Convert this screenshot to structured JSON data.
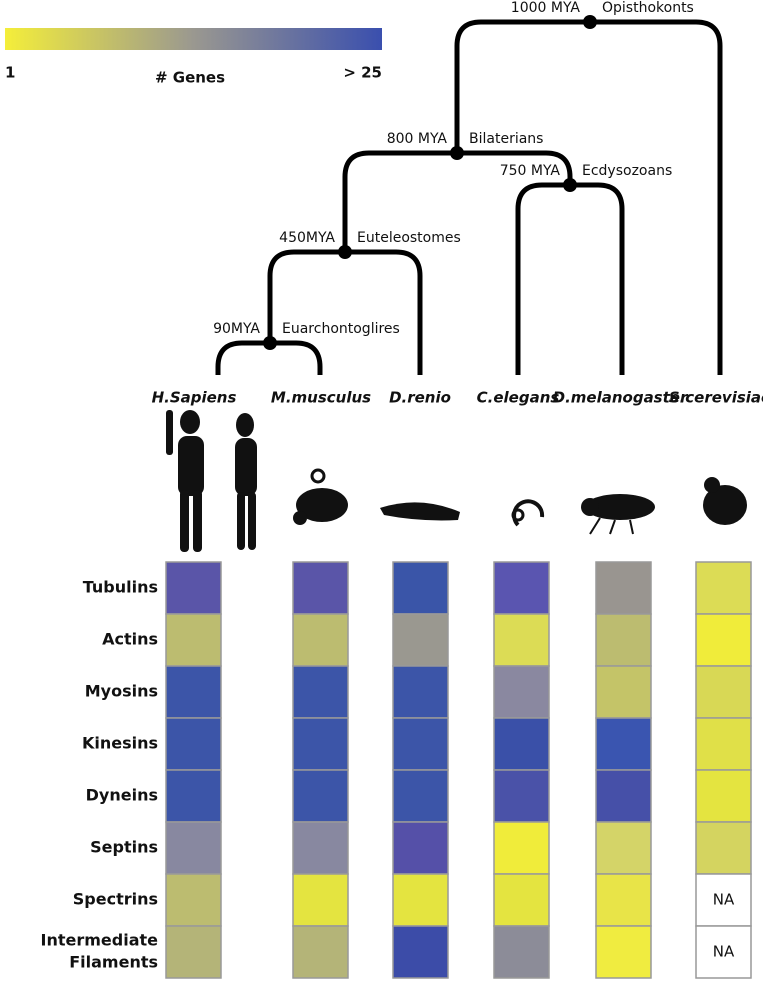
{
  "legend": {
    "title": "# Genes",
    "min_label": "1",
    "max_label": "> 25",
    "colors": [
      "#f4ee3a",
      "#9a9890",
      "#3a4fae"
    ]
  },
  "tree": {
    "nodes": [
      {
        "age": "1000 MYA",
        "clade": "Opisthokonts"
      },
      {
        "age": "800 MYA",
        "clade": "Bilaterians"
      },
      {
        "age": "750 MYA",
        "clade": "Ecdysozoans"
      },
      {
        "age": "450MYA",
        "clade": "Euteleostomes"
      },
      {
        "age": "90MYA",
        "clade": "Euarchontoglires"
      }
    ]
  },
  "species": [
    "H.Sapiens",
    "M.musculus",
    "D.renio",
    "C.elegans",
    "D.melanogaster",
    "S.cerevisiae"
  ],
  "heatmap": {
    "rows": [
      {
        "label": "Tubulins",
        "cells": [
          "#5a55a8",
          "#5a55a8",
          "#3a55a8",
          "#5a55b0",
          "#999590",
          "#dcdc55"
        ]
      },
      {
        "label": "Actins",
        "cells": [
          "#bcbc70",
          "#bcbc70",
          "#9a9890",
          "#dcdc55",
          "#bcbc70",
          "#f0ec3a"
        ]
      },
      {
        "label": "Myosins",
        "cells": [
          "#3c55a8",
          "#3c55a8",
          "#3c55a8",
          "#8a88a0",
          "#c4c468",
          "#d8d855"
        ]
      },
      {
        "label": "Kinesins",
        "cells": [
          "#3c55a8",
          "#3c55a8",
          "#3c55a8",
          "#3a50a8",
          "#3a55b0",
          "#e0e048"
        ]
      },
      {
        "label": "Dyneins",
        "cells": [
          "#3c55a8",
          "#3c55a8",
          "#3c55a8",
          "#4a52a8",
          "#4650a8",
          "#e4e440"
        ]
      },
      {
        "label": "Septins",
        "cells": [
          "#8888a0",
          "#8888a0",
          "#5550a8",
          "#f0ec3a",
          "#d4d468",
          "#d4d460"
        ]
      },
      {
        "label": "Spectrins",
        "cells": [
          "#bcbc70",
          "#e4e440",
          "#e4e440",
          "#e4e440",
          "#e8e448",
          {
            "label": "NA"
          }
        ]
      },
      {
        "label": [
          "Intermediate",
          "Filaments"
        ],
        "cells": [
          "#b4b478",
          "#b4b478",
          "#3c4ca8",
          "#8c8c98",
          "#f0ec40",
          {
            "label": "NA"
          }
        ]
      }
    ]
  }
}
